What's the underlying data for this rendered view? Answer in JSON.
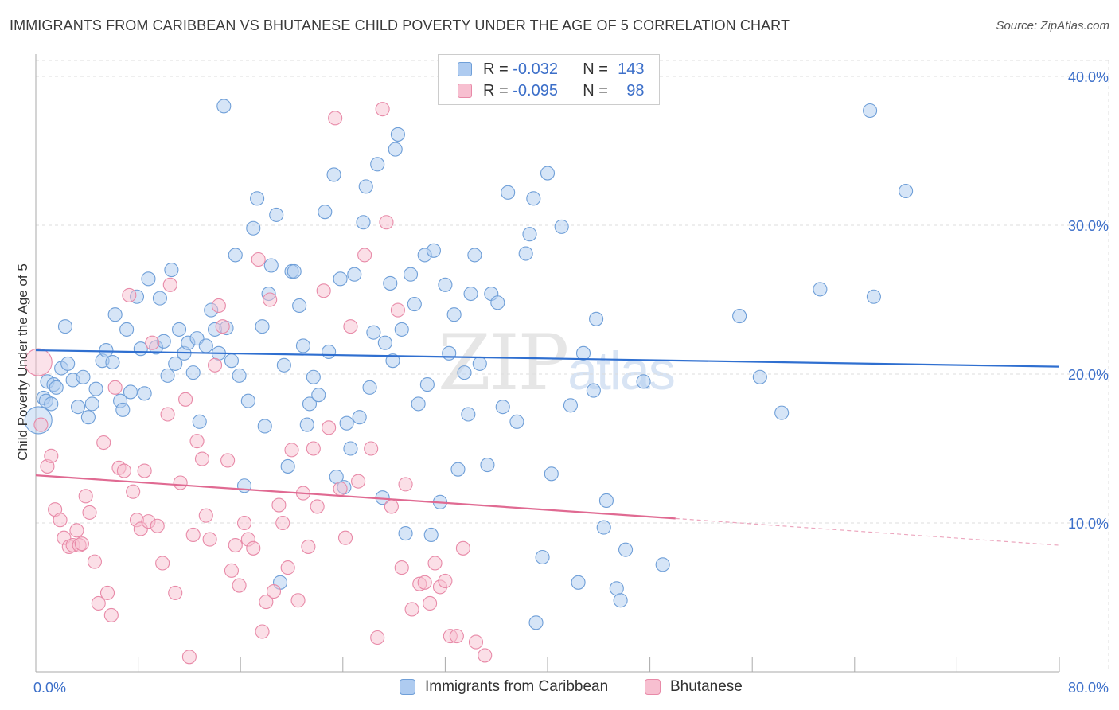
{
  "header": {
    "title": "IMMIGRANTS FROM CARIBBEAN VS BHUTANESE CHILD POVERTY UNDER THE AGE OF 5 CORRELATION CHART",
    "source": "Source: ZipAtlas.com"
  },
  "watermark": {
    "big": "ZIP",
    "small": "atlas"
  },
  "legend_top": {
    "r_label": "R =",
    "n_label": "N =",
    "rows": [
      {
        "r": "-0.032",
        "n": "143"
      },
      {
        "r": "-0.095",
        "n": "98"
      }
    ]
  },
  "colors": {
    "blue_fill": "#aecbf0",
    "blue_stroke": "#6f9fd8",
    "blue_line": "#2f6fd0",
    "pink_fill": "#f7bfd0",
    "pink_stroke": "#e88aa8",
    "pink_line": "#e06a92",
    "grid": "#dddddd",
    "tick_label": "#3c6fc9"
  },
  "chart_data": {
    "type": "scatter",
    "title": "IMMIGRANTS FROM CARIBBEAN VS BHUTANESE CHILD POVERTY UNDER THE AGE OF 5 CORRELATION CHART",
    "xlabel": "",
    "ylabel": "Child Poverty Under the Age of 5",
    "xlim": [
      0,
      80
    ],
    "ylim": [
      0,
      40
    ],
    "x_tick_labels": [
      "0.0%",
      "80.0%"
    ],
    "y_ticks": [
      10,
      20,
      30,
      40
    ],
    "y_tick_labels": [
      "10.0%",
      "20.0%",
      "30.0%",
      "40.0%"
    ],
    "grid": true,
    "legend_position": "top-center",
    "series": [
      {
        "name": "Immigrants from Caribbean",
        "color": "#aecbf0",
        "trend": {
          "x": [
            0,
            80
          ],
          "y": [
            21.6,
            20.5
          ]
        },
        "points": [
          [
            0.2,
            16.9
          ],
          [
            0.6,
            18.4
          ],
          [
            0.8,
            18.2
          ],
          [
            0.9,
            19.5
          ],
          [
            1.2,
            18.0
          ],
          [
            1.4,
            19.3
          ],
          [
            1.6,
            19.1
          ],
          [
            2.0,
            20.4
          ],
          [
            2.3,
            23.2
          ],
          [
            2.5,
            20.7
          ],
          [
            2.9,
            19.6
          ],
          [
            3.3,
            17.8
          ],
          [
            3.7,
            19.8
          ],
          [
            4.1,
            17.1
          ],
          [
            4.4,
            18.0
          ],
          [
            4.7,
            19.0
          ],
          [
            5.2,
            20.9
          ],
          [
            5.5,
            21.6
          ],
          [
            6.0,
            20.8
          ],
          [
            6.2,
            24.0
          ],
          [
            6.6,
            18.2
          ],
          [
            6.8,
            17.6
          ],
          [
            7.1,
            23.0
          ],
          [
            7.4,
            18.8
          ],
          [
            7.9,
            25.2
          ],
          [
            8.2,
            21.7
          ],
          [
            8.5,
            18.7
          ],
          [
            8.8,
            26.4
          ],
          [
            9.4,
            21.8
          ],
          [
            9.7,
            25.1
          ],
          [
            10.0,
            22.2
          ],
          [
            10.3,
            19.9
          ],
          [
            10.6,
            27.0
          ],
          [
            10.9,
            20.7
          ],
          [
            11.2,
            23.0
          ],
          [
            11.6,
            21.4
          ],
          [
            11.9,
            22.1
          ],
          [
            12.3,
            20.1
          ],
          [
            12.6,
            22.4
          ],
          [
            12.8,
            16.8
          ],
          [
            13.3,
            21.9
          ],
          [
            13.7,
            24.3
          ],
          [
            14.0,
            23.0
          ],
          [
            14.3,
            21.4
          ],
          [
            14.7,
            38.0
          ],
          [
            14.9,
            23.1
          ],
          [
            15.3,
            20.9
          ],
          [
            15.6,
            28.0
          ],
          [
            15.9,
            19.9
          ],
          [
            16.3,
            12.5
          ],
          [
            16.6,
            18.2
          ],
          [
            17.0,
            29.8
          ],
          [
            17.3,
            31.8
          ],
          [
            17.7,
            23.2
          ],
          [
            17.9,
            16.5
          ],
          [
            18.2,
            25.4
          ],
          [
            18.4,
            27.3
          ],
          [
            18.8,
            30.7
          ],
          [
            19.1,
            6.0
          ],
          [
            19.4,
            20.6
          ],
          [
            19.7,
            13.8
          ],
          [
            20.0,
            26.9
          ],
          [
            20.2,
            26.9
          ],
          [
            20.6,
            24.6
          ],
          [
            20.9,
            21.9
          ],
          [
            21.2,
            16.6
          ],
          [
            21.4,
            18.0
          ],
          [
            21.7,
            19.8
          ],
          [
            22.1,
            18.6
          ],
          [
            22.6,
            30.9
          ],
          [
            22.9,
            21.5
          ],
          [
            23.3,
            33.4
          ],
          [
            23.5,
            13.1
          ],
          [
            23.8,
            26.4
          ],
          [
            24.1,
            12.4
          ],
          [
            24.3,
            16.7
          ],
          [
            24.6,
            15.0
          ],
          [
            24.9,
            26.7
          ],
          [
            25.3,
            17.1
          ],
          [
            25.6,
            30.2
          ],
          [
            25.8,
            32.6
          ],
          [
            26.1,
            19.1
          ],
          [
            26.4,
            22.8
          ],
          [
            26.7,
            34.1
          ],
          [
            27.1,
            11.7
          ],
          [
            27.3,
            22.1
          ],
          [
            27.7,
            26.1
          ],
          [
            27.9,
            20.9
          ],
          [
            28.1,
            35.1
          ],
          [
            28.3,
            36.1
          ],
          [
            28.6,
            23.0
          ],
          [
            28.9,
            9.3
          ],
          [
            29.3,
            26.7
          ],
          [
            29.6,
            24.7
          ],
          [
            29.9,
            18.0
          ],
          [
            30.4,
            28.0
          ],
          [
            30.6,
            19.3
          ],
          [
            30.9,
            9.2
          ],
          [
            31.1,
            28.3
          ],
          [
            31.6,
            11.4
          ],
          [
            32.0,
            26.0
          ],
          [
            32.3,
            21.4
          ],
          [
            32.7,
            24.0
          ],
          [
            33.0,
            13.6
          ],
          [
            33.5,
            20.1
          ],
          [
            33.8,
            17.3
          ],
          [
            34.0,
            25.4
          ],
          [
            34.3,
            28.0
          ],
          [
            34.7,
            20.7
          ],
          [
            35.3,
            13.9
          ],
          [
            35.6,
            25.4
          ],
          [
            36.1,
            24.8
          ],
          [
            36.5,
            17.8
          ],
          [
            36.9,
            32.2
          ],
          [
            37.6,
            16.8
          ],
          [
            38.3,
            28.1
          ],
          [
            38.6,
            29.4
          ],
          [
            38.9,
            31.8
          ],
          [
            39.1,
            3.3
          ],
          [
            39.6,
            7.7
          ],
          [
            40.0,
            33.5
          ],
          [
            40.3,
            13.3
          ],
          [
            41.1,
            29.9
          ],
          [
            41.8,
            17.9
          ],
          [
            42.4,
            6.0
          ],
          [
            42.8,
            21.4
          ],
          [
            43.6,
            18.9
          ],
          [
            43.8,
            23.7
          ],
          [
            44.4,
            9.7
          ],
          [
            44.6,
            11.5
          ],
          [
            45.4,
            5.6
          ],
          [
            45.7,
            4.8
          ],
          [
            46.1,
            8.2
          ],
          [
            47.5,
            19.5
          ],
          [
            49.0,
            7.2
          ],
          [
            55.0,
            23.9
          ],
          [
            56.6,
            19.8
          ],
          [
            58.3,
            17.4
          ],
          [
            61.3,
            25.7
          ],
          [
            65.2,
            37.7
          ],
          [
            65.5,
            25.2
          ],
          [
            68.0,
            32.3
          ]
        ]
      },
      {
        "name": "Bhutanese",
        "color": "#f7bfd0",
        "trend": {
          "x": [
            0,
            50
          ],
          "y": [
            13.2,
            10.3
          ]
        },
        "trend_dashed": {
          "x": [
            50,
            80
          ],
          "y": [
            10.3,
            8.5
          ]
        },
        "points": [
          [
            0.2,
            20.8
          ],
          [
            0.4,
            16.6
          ],
          [
            0.9,
            13.8
          ],
          [
            1.2,
            14.5
          ],
          [
            1.5,
            10.9
          ],
          [
            1.9,
            10.2
          ],
          [
            2.2,
            9.0
          ],
          [
            2.6,
            8.4
          ],
          [
            2.9,
            8.5
          ],
          [
            3.2,
            9.5
          ],
          [
            3.4,
            8.5
          ],
          [
            3.6,
            8.6
          ],
          [
            3.9,
            11.8
          ],
          [
            4.2,
            10.7
          ],
          [
            4.6,
            7.4
          ],
          [
            4.9,
            4.6
          ],
          [
            5.3,
            15.4
          ],
          [
            5.6,
            5.3
          ],
          [
            5.9,
            3.8
          ],
          [
            6.2,
            19.1
          ],
          [
            6.5,
            13.7
          ],
          [
            6.9,
            13.5
          ],
          [
            7.3,
            25.3
          ],
          [
            7.6,
            12.1
          ],
          [
            7.9,
            10.2
          ],
          [
            8.2,
            9.6
          ],
          [
            8.5,
            13.5
          ],
          [
            8.8,
            10.1
          ],
          [
            9.1,
            22.1
          ],
          [
            9.5,
            9.8
          ],
          [
            9.9,
            7.3
          ],
          [
            10.3,
            17.3
          ],
          [
            10.5,
            26.0
          ],
          [
            10.9,
            5.3
          ],
          [
            11.3,
            12.7
          ],
          [
            11.7,
            18.3
          ],
          [
            12.0,
            1.0
          ],
          [
            12.3,
            9.2
          ],
          [
            12.6,
            15.5
          ],
          [
            13.0,
            14.3
          ],
          [
            13.3,
            10.5
          ],
          [
            13.6,
            8.9
          ],
          [
            14.0,
            20.6
          ],
          [
            14.3,
            24.6
          ],
          [
            14.6,
            23.2
          ],
          [
            15.0,
            14.2
          ],
          [
            15.3,
            6.8
          ],
          [
            15.6,
            8.5
          ],
          [
            15.9,
            5.8
          ],
          [
            16.3,
            10.0
          ],
          [
            16.6,
            8.9
          ],
          [
            17.0,
            8.3
          ],
          [
            17.4,
            27.7
          ],
          [
            17.7,
            2.7
          ],
          [
            18.0,
            4.7
          ],
          [
            18.3,
            25.0
          ],
          [
            18.6,
            5.4
          ],
          [
            19.0,
            11.2
          ],
          [
            19.3,
            10.0
          ],
          [
            19.7,
            7.0
          ],
          [
            20.0,
            14.9
          ],
          [
            20.5,
            4.8
          ],
          [
            20.9,
            12.0
          ],
          [
            21.3,
            8.4
          ],
          [
            21.7,
            15.0
          ],
          [
            22.0,
            11.1
          ],
          [
            22.5,
            25.6
          ],
          [
            22.9,
            16.4
          ],
          [
            23.4,
            37.2
          ],
          [
            23.8,
            12.3
          ],
          [
            24.2,
            9.0
          ],
          [
            24.6,
            23.2
          ],
          [
            25.2,
            12.8
          ],
          [
            25.7,
            28.0
          ],
          [
            26.2,
            15.0
          ],
          [
            26.7,
            2.3
          ],
          [
            27.1,
            37.8
          ],
          [
            27.4,
            30.2
          ],
          [
            27.8,
            11.1
          ],
          [
            28.3,
            24.3
          ],
          [
            28.6,
            7.0
          ],
          [
            28.9,
            12.6
          ],
          [
            29.4,
            4.2
          ],
          [
            30.0,
            5.9
          ],
          [
            30.4,
            6.0
          ],
          [
            30.8,
            4.6
          ],
          [
            31.2,
            7.3
          ],
          [
            31.6,
            5.7
          ],
          [
            32.0,
            6.1
          ],
          [
            32.4,
            2.4
          ],
          [
            32.9,
            2.4
          ],
          [
            33.4,
            8.3
          ],
          [
            34.4,
            2.0
          ],
          [
            35.1,
            1.1
          ]
        ]
      }
    ]
  },
  "bottom_legend": [
    {
      "label": "Immigrants from Caribbean"
    },
    {
      "label": "Bhutanese"
    }
  ]
}
